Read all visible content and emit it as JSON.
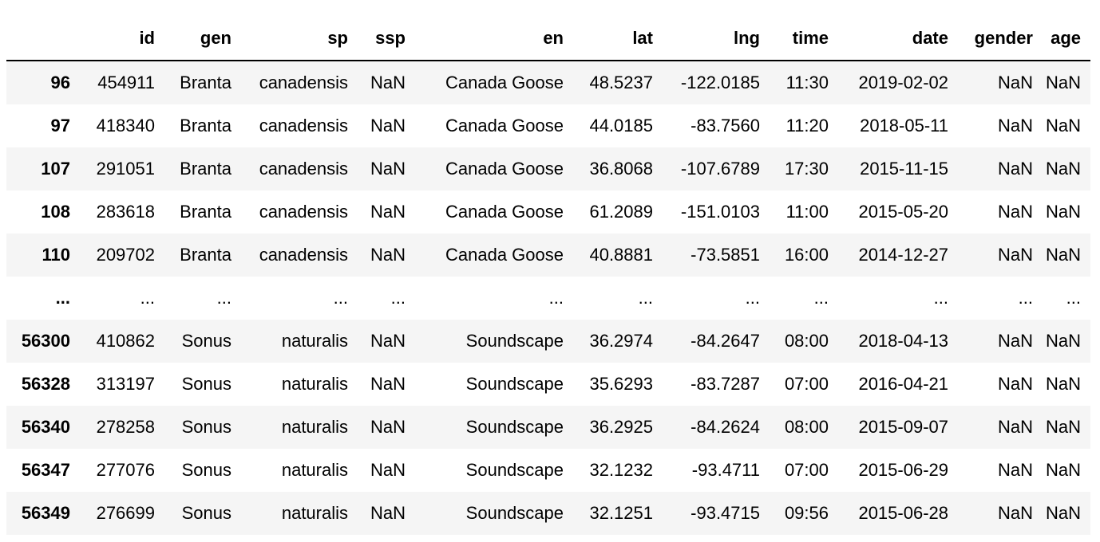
{
  "table": {
    "columns": [
      "",
      "id",
      "gen",
      "sp",
      "ssp",
      "en",
      "lat",
      "lng",
      "time",
      "date",
      "gender",
      "age"
    ],
    "rows": [
      {
        "index": "96",
        "cells": [
          "454911",
          "Branta",
          "canadensis",
          "NaN",
          "Canada Goose",
          "48.5237",
          "-122.0185",
          "11:30",
          "2019-02-02",
          "NaN",
          "NaN"
        ]
      },
      {
        "index": "97",
        "cells": [
          "418340",
          "Branta",
          "canadensis",
          "NaN",
          "Canada Goose",
          "44.0185",
          "-83.7560",
          "11:20",
          "2018-05-11",
          "NaN",
          "NaN"
        ]
      },
      {
        "index": "107",
        "cells": [
          "291051",
          "Branta",
          "canadensis",
          "NaN",
          "Canada Goose",
          "36.8068",
          "-107.6789",
          "17:30",
          "2015-11-15",
          "NaN",
          "NaN"
        ]
      },
      {
        "index": "108",
        "cells": [
          "283618",
          "Branta",
          "canadensis",
          "NaN",
          "Canada Goose",
          "61.2089",
          "-151.0103",
          "11:00",
          "2015-05-20",
          "NaN",
          "NaN"
        ]
      },
      {
        "index": "110",
        "cells": [
          "209702",
          "Branta",
          "canadensis",
          "NaN",
          "Canada Goose",
          "40.8881",
          "-73.5851",
          "16:00",
          "2014-12-27",
          "NaN",
          "NaN"
        ]
      },
      {
        "index": "...",
        "cells": [
          "...",
          "...",
          "...",
          "...",
          "...",
          "...",
          "...",
          "...",
          "...",
          "...",
          "..."
        ]
      },
      {
        "index": "56300",
        "cells": [
          "410862",
          "Sonus",
          "naturalis",
          "NaN",
          "Soundscape",
          "36.2974",
          "-84.2647",
          "08:00",
          "2018-04-13",
          "NaN",
          "NaN"
        ]
      },
      {
        "index": "56328",
        "cells": [
          "313197",
          "Sonus",
          "naturalis",
          "NaN",
          "Soundscape",
          "35.6293",
          "-83.7287",
          "07:00",
          "2016-04-21",
          "NaN",
          "NaN"
        ]
      },
      {
        "index": "56340",
        "cells": [
          "278258",
          "Sonus",
          "naturalis",
          "NaN",
          "Soundscape",
          "36.2925",
          "-84.2624",
          "08:00",
          "2015-09-07",
          "NaN",
          "NaN"
        ]
      },
      {
        "index": "56347",
        "cells": [
          "277076",
          "Sonus",
          "naturalis",
          "NaN",
          "Soundscape",
          "32.1232",
          "-93.4711",
          "07:00",
          "2015-06-29",
          "NaN",
          "NaN"
        ]
      },
      {
        "index": "56349",
        "cells": [
          "276699",
          "Sonus",
          "naturalis",
          "NaN",
          "Soundscape",
          "32.1251",
          "-93.4715",
          "09:56",
          "2015-06-28",
          "NaN",
          "NaN"
        ]
      }
    ]
  }
}
